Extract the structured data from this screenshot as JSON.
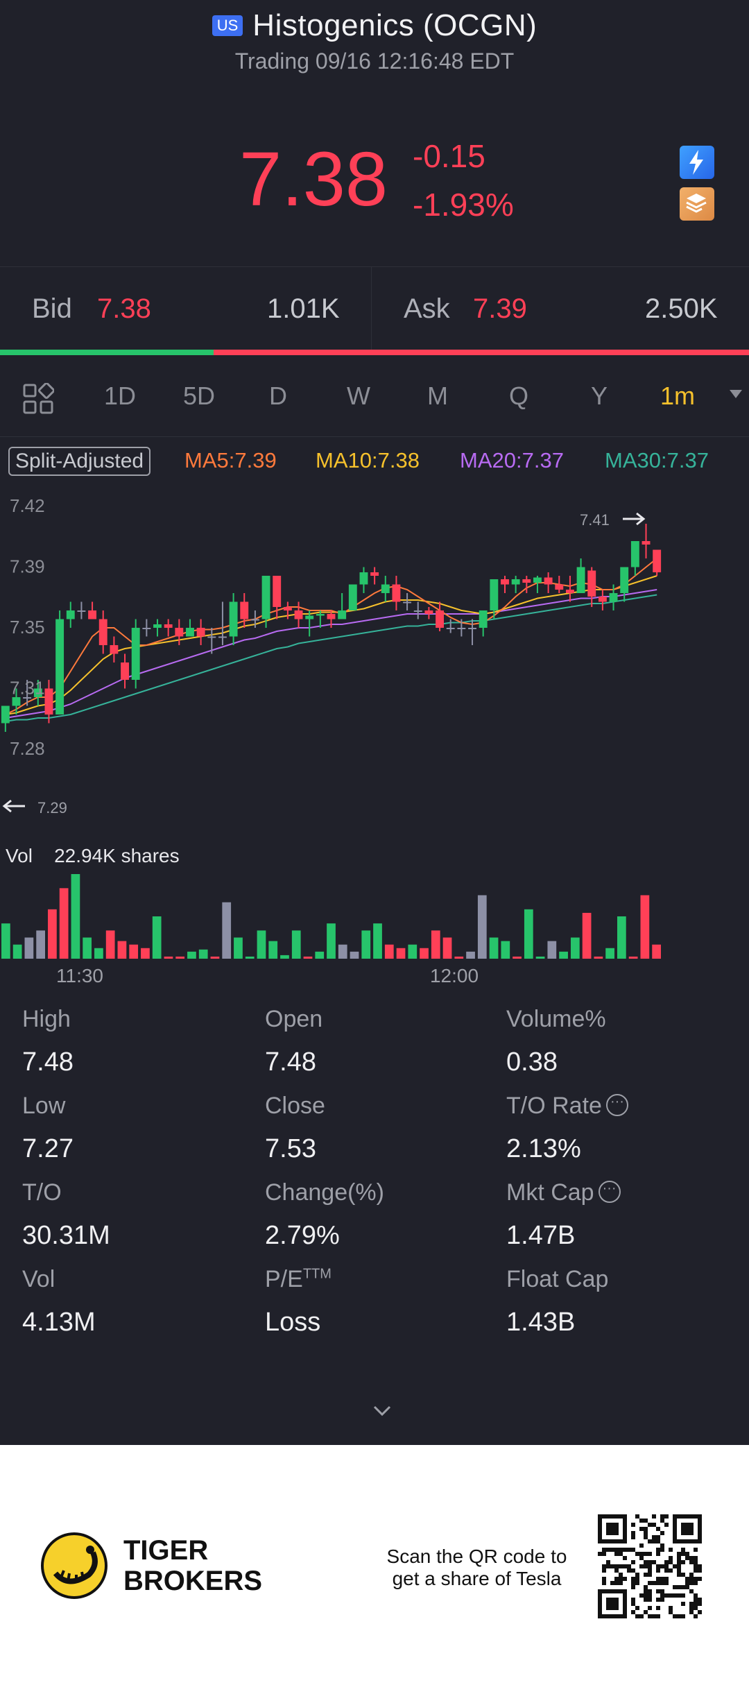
{
  "header": {
    "market_badge": "US",
    "title": "Histogenics (OCGN)",
    "subtitle": "Trading 09/16 12:16:48 EDT"
  },
  "quote": {
    "price": "7.38",
    "change": "-0.15",
    "change_pct": "-1.93%",
    "bid_label": "Bid",
    "bid_price": "7.38",
    "bid_size": "1.01K",
    "ask_label": "Ask",
    "ask_price": "7.39",
    "ask_size": "2.50K",
    "bid_ratio": 0.285,
    "colors": {
      "down": "#ff4057",
      "up": "#27c46b"
    }
  },
  "tabs": {
    "items": [
      "1D",
      "5D",
      "D",
      "W",
      "M",
      "Q",
      "Y",
      "1m"
    ],
    "active": "1m"
  },
  "indicators": {
    "split_label": "Split-Adjusted",
    "ma5": "MA5:7.39",
    "ma10": "MA10:7.38",
    "ma20": "MA20:7.37",
    "ma30": "MA30:7.37",
    "colors": {
      "ma5": "#ff7a3c",
      "ma10": "#f6c12c",
      "ma20": "#b86bf2",
      "ma30": "#36b39a"
    }
  },
  "chart_data": {
    "type": "candlestick",
    "y_ticks": [
      "7.42",
      "7.39",
      "7.35",
      "7.31",
      "7.28"
    ],
    "x_ticks": [
      "11:30",
      "12:00"
    ],
    "ylim": [
      7.28,
      7.42
    ],
    "max_label": "7.41",
    "min_label": "7.29",
    "volume_label": "Vol",
    "volume_value": "22.94K shares",
    "candles": [
      [
        7.295,
        7.305,
        7.305,
        7.29
      ],
      [
        7.305,
        7.31,
        7.315,
        7.3
      ],
      [
        7.31,
        7.31,
        7.32,
        7.305
      ],
      [
        7.31,
        7.315,
        7.32,
        7.305
      ],
      [
        7.315,
        7.3,
        7.32,
        7.295
      ],
      [
        7.3,
        7.355,
        7.36,
        7.3
      ],
      [
        7.355,
        7.36,
        7.365,
        7.35
      ],
      [
        7.36,
        7.36,
        7.365,
        7.355
      ],
      [
        7.36,
        7.355,
        7.365,
        7.355
      ],
      [
        7.355,
        7.34,
        7.36,
        7.335
      ],
      [
        7.34,
        7.335,
        7.345,
        7.33
      ],
      [
        7.33,
        7.32,
        7.335,
        7.315
      ],
      [
        7.32,
        7.35,
        7.355,
        7.315
      ],
      [
        7.35,
        7.35,
        7.355,
        7.345
      ],
      [
        7.35,
        7.352,
        7.355,
        7.345
      ],
      [
        7.352,
        7.35,
        7.355,
        7.345
      ],
      [
        7.35,
        7.345,
        7.355,
        7.34
      ],
      [
        7.345,
        7.35,
        7.355,
        7.345
      ],
      [
        7.35,
        7.345,
        7.355,
        7.34
      ],
      [
        7.345,
        7.345,
        7.35,
        7.335
      ],
      [
        7.345,
        7.345,
        7.365,
        7.34
      ],
      [
        7.345,
        7.365,
        7.37,
        7.34
      ],
      [
        7.365,
        7.355,
        7.37,
        7.35
      ],
      [
        7.355,
        7.355,
        7.36,
        7.35
      ],
      [
        7.355,
        7.38,
        7.38,
        7.35
      ],
      [
        7.38,
        7.362,
        7.38,
        7.355
      ],
      [
        7.362,
        7.36,
        7.365,
        7.355
      ],
      [
        7.36,
        7.355,
        7.365,
        7.35
      ],
      [
        7.355,
        7.357,
        7.36,
        7.345
      ],
      [
        7.357,
        7.358,
        7.36,
        7.35
      ],
      [
        7.358,
        7.355,
        7.36,
        7.35
      ],
      [
        7.355,
        7.36,
        7.37,
        7.355
      ],
      [
        7.36,
        7.375,
        7.375,
        7.36
      ],
      [
        7.375,
        7.382,
        7.385,
        7.37
      ],
      [
        7.382,
        7.38,
        7.385,
        7.375
      ],
      [
        7.37,
        7.375,
        7.38,
        7.365
      ],
      [
        7.375,
        7.365,
        7.38,
        7.36
      ],
      [
        7.365,
        7.365,
        7.37,
        7.36
      ],
      [
        7.36,
        7.36,
        7.365,
        7.355
      ],
      [
        7.36,
        7.358,
        7.362,
        7.355
      ],
      [
        7.36,
        7.35,
        7.365,
        7.348
      ],
      [
        7.35,
        7.35,
        7.355,
        7.347
      ],
      [
        7.35,
        7.35,
        7.355,
        7.345
      ],
      [
        7.35,
        7.35,
        7.355,
        7.34
      ],
      [
        7.35,
        7.36,
        7.36,
        7.345
      ],
      [
        7.36,
        7.378,
        7.378,
        7.355
      ],
      [
        7.378,
        7.375,
        7.38,
        7.37
      ],
      [
        7.375,
        7.378,
        7.38,
        7.37
      ],
      [
        7.378,
        7.376,
        7.38,
        7.37
      ],
      [
        7.376,
        7.379,
        7.38,
        7.37
      ],
      [
        7.379,
        7.375,
        7.382,
        7.37
      ],
      [
        7.375,
        7.372,
        7.38,
        7.37
      ],
      [
        7.372,
        7.37,
        7.38,
        7.365
      ],
      [
        7.37,
        7.385,
        7.39,
        7.37
      ],
      [
        7.383,
        7.368,
        7.385,
        7.362
      ],
      [
        7.368,
        7.365,
        7.372,
        7.36
      ],
      [
        7.365,
        7.37,
        7.375,
        7.36
      ],
      [
        7.37,
        7.385,
        7.385,
        7.365
      ],
      [
        7.385,
        7.4,
        7.4,
        7.38
      ],
      [
        7.4,
        7.398,
        7.41,
        7.39
      ],
      [
        7.395,
        7.382,
        7.395,
        7.38
      ]
    ],
    "ma5": [
      7.3,
      7.303,
      7.307,
      7.31,
      7.31,
      7.315,
      7.325,
      7.335,
      7.345,
      7.35,
      7.35,
      7.345,
      7.34,
      7.34,
      7.342,
      7.344,
      7.346,
      7.348,
      7.349,
      7.349,
      7.35,
      7.352,
      7.354,
      7.355,
      7.358,
      7.36,
      7.362,
      7.362,
      7.36,
      7.36,
      7.36,
      7.358,
      7.362,
      7.366,
      7.37,
      7.373,
      7.374,
      7.372,
      7.368,
      7.364,
      7.36,
      7.356,
      7.353,
      7.352,
      7.353,
      7.357,
      7.362,
      7.368,
      7.373,
      7.376,
      7.376,
      7.375,
      7.374,
      7.376,
      7.375,
      7.372,
      7.372,
      7.375,
      7.38,
      7.385,
      7.39
    ],
    "ma10": [
      7.3,
      7.301,
      7.303,
      7.305,
      7.306,
      7.309,
      7.314,
      7.32,
      7.326,
      7.332,
      7.336,
      7.338,
      7.339,
      7.34,
      7.341,
      7.342,
      7.343,
      7.344,
      7.345,
      7.346,
      7.347,
      7.349,
      7.351,
      7.352,
      7.354,
      7.356,
      7.357,
      7.358,
      7.358,
      7.359,
      7.359,
      7.359,
      7.36,
      7.361,
      7.363,
      7.365,
      7.366,
      7.366,
      7.366,
      7.365,
      7.364,
      7.362,
      7.36,
      7.359,
      7.358,
      7.359,
      7.361,
      7.363,
      7.365,
      7.367,
      7.368,
      7.369,
      7.37,
      7.371,
      7.372,
      7.372,
      7.372,
      7.374,
      7.376,
      7.378,
      7.38
    ],
    "ma20": [
      7.298,
      7.299,
      7.3,
      7.301,
      7.302,
      7.304,
      7.306,
      7.309,
      7.312,
      7.315,
      7.318,
      7.321,
      7.323,
      7.325,
      7.327,
      7.329,
      7.331,
      7.333,
      7.335,
      7.337,
      7.339,
      7.341,
      7.343,
      7.344,
      7.346,
      7.348,
      7.349,
      7.35,
      7.35,
      7.351,
      7.352,
      7.352,
      7.353,
      7.354,
      7.355,
      7.356,
      7.357,
      7.358,
      7.358,
      7.358,
      7.358,
      7.358,
      7.358,
      7.358,
      7.358,
      7.359,
      7.36,
      7.361,
      7.362,
      7.363,
      7.364,
      7.365,
      7.366,
      7.367,
      7.367,
      7.368,
      7.368,
      7.369,
      7.37,
      7.371,
      7.372
    ],
    "ma30": [
      7.296,
      7.297,
      7.297,
      7.298,
      7.298,
      7.299,
      7.3,
      7.302,
      7.304,
      7.306,
      7.308,
      7.31,
      7.312,
      7.314,
      7.316,
      7.318,
      7.32,
      7.322,
      7.324,
      7.326,
      7.328,
      7.33,
      7.332,
      7.334,
      7.336,
      7.338,
      7.339,
      7.341,
      7.342,
      7.343,
      7.344,
      7.345,
      7.346,
      7.347,
      7.348,
      7.349,
      7.35,
      7.351,
      7.351,
      7.352,
      7.352,
      7.353,
      7.353,
      7.354,
      7.354,
      7.355,
      7.356,
      7.357,
      7.358,
      7.359,
      7.36,
      7.361,
      7.362,
      7.363,
      7.364,
      7.364,
      7.365,
      7.366,
      7.367,
      7.368,
      7.369
    ],
    "volumes": [
      {
        "v": 5,
        "c": "up"
      },
      {
        "v": 2,
        "c": "up"
      },
      {
        "v": 3,
        "c": "flat"
      },
      {
        "v": 4,
        "c": "flat"
      },
      {
        "v": 7,
        "c": "down"
      },
      {
        "v": 10,
        "c": "down"
      },
      {
        "v": 12,
        "c": "up"
      },
      {
        "v": 3,
        "c": "up"
      },
      {
        "v": 1.5,
        "c": "up"
      },
      {
        "v": 4,
        "c": "down"
      },
      {
        "v": 2.5,
        "c": "down"
      },
      {
        "v": 2,
        "c": "down"
      },
      {
        "v": 1.5,
        "c": "down"
      },
      {
        "v": 6,
        "c": "up"
      },
      {
        "v": 0.3,
        "c": "down"
      },
      {
        "v": 0.3,
        "c": "down"
      },
      {
        "v": 1,
        "c": "up"
      },
      {
        "v": 1.3,
        "c": "up"
      },
      {
        "v": 0.3,
        "c": "down"
      },
      {
        "v": 8,
        "c": "flat"
      },
      {
        "v": 3,
        "c": "up"
      },
      {
        "v": 0.3,
        "c": "up"
      },
      {
        "v": 4,
        "c": "up"
      },
      {
        "v": 2.5,
        "c": "up"
      },
      {
        "v": 0.5,
        "c": "up"
      },
      {
        "v": 4,
        "c": "up"
      },
      {
        "v": 0.3,
        "c": "down"
      },
      {
        "v": 1,
        "c": "up"
      },
      {
        "v": 5,
        "c": "up"
      },
      {
        "v": 2,
        "c": "flat"
      },
      {
        "v": 1,
        "c": "flat"
      },
      {
        "v": 4,
        "c": "up"
      },
      {
        "v": 5,
        "c": "up"
      },
      {
        "v": 2,
        "c": "down"
      },
      {
        "v": 1.5,
        "c": "down"
      },
      {
        "v": 2,
        "c": "up"
      },
      {
        "v": 1.5,
        "c": "down"
      },
      {
        "v": 4,
        "c": "down"
      },
      {
        "v": 3,
        "c": "down"
      },
      {
        "v": 0.3,
        "c": "down"
      },
      {
        "v": 1,
        "c": "flat"
      },
      {
        "v": 9,
        "c": "flat"
      },
      {
        "v": 3,
        "c": "up"
      },
      {
        "v": 2.5,
        "c": "up"
      },
      {
        "v": 0.3,
        "c": "down"
      },
      {
        "v": 7,
        "c": "up"
      },
      {
        "v": 0.3,
        "c": "up"
      },
      {
        "v": 2.5,
        "c": "flat"
      },
      {
        "v": 1,
        "c": "up"
      },
      {
        "v": 3,
        "c": "up"
      },
      {
        "v": 6.5,
        "c": "down"
      },
      {
        "v": 0.3,
        "c": "down"
      },
      {
        "v": 1.5,
        "c": "up"
      },
      {
        "v": 6,
        "c": "up"
      },
      {
        "v": 0.3,
        "c": "down"
      },
      {
        "v": 9,
        "c": "down"
      },
      {
        "v": 2,
        "c": "down"
      }
    ]
  },
  "stats": [
    {
      "label": "High",
      "value": "7.48",
      "info": false
    },
    {
      "label": "Open",
      "value": "7.48",
      "info": false
    },
    {
      "label": "Volume%",
      "value": "0.38",
      "info": false
    },
    {
      "label": "Low",
      "value": "7.27",
      "info": false
    },
    {
      "label": "Close",
      "value": "7.53",
      "info": false
    },
    {
      "label": "T/O Rate",
      "value": "2.13%",
      "info": true
    },
    {
      "label": "T/O",
      "value": "30.31M",
      "info": false
    },
    {
      "label": "Change(%)",
      "value": "2.79%",
      "info": false
    },
    {
      "label": "Mkt Cap",
      "value": "1.47B",
      "info": true
    },
    {
      "label": "Vol",
      "value": "4.13M",
      "info": false
    },
    {
      "label": "P/E",
      "label_sup": "TTM",
      "value": "Loss",
      "info": false
    },
    {
      "label": "Float Cap",
      "value": "1.43B",
      "info": false
    }
  ],
  "footer": {
    "brand_line1": "TIGER",
    "brand_line2": "BROKERS",
    "scan_line1": "Scan the QR code to",
    "scan_line2": "get a share of Tesla"
  }
}
